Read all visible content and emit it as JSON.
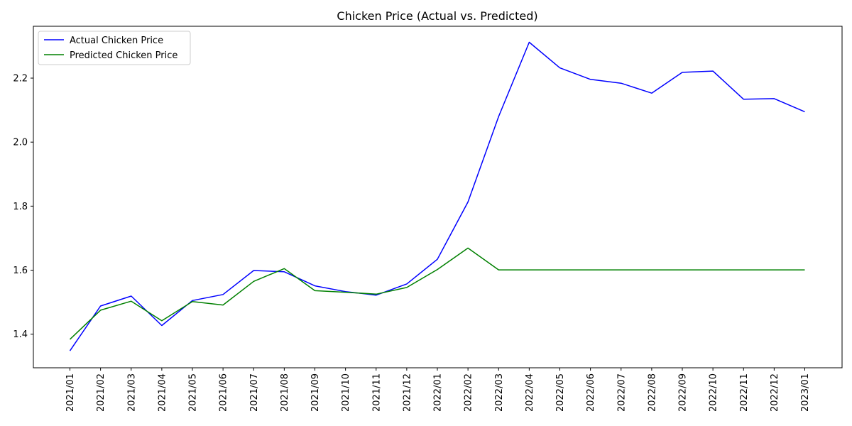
{
  "chart_data": {
    "type": "line",
    "title": "Chicken Price (Actual vs. Predicted)",
    "xlabel": "",
    "ylabel": "",
    "categories": [
      "2021/01",
      "2021/02",
      "2021/03",
      "2021/04",
      "2021/05",
      "2021/06",
      "2021/07",
      "2021/08",
      "2021/09",
      "2021/10",
      "2021/11",
      "2021/12",
      "2022/01",
      "2022/02",
      "2022/03",
      "2022/04",
      "2022/05",
      "2022/06",
      "2022/07",
      "2022/08",
      "2022/09",
      "2022/10",
      "2022/11",
      "2022/12",
      "2023/01"
    ],
    "yticks": [
      "1.4",
      "1.6",
      "1.8",
      "2.0",
      "2.2"
    ],
    "ylim": [
      1.295,
      2.362
    ],
    "grid": false,
    "legend_position": "top-left",
    "series": [
      {
        "name": "Actual Chicken Price",
        "color": "#0000ff",
        "values": [
          1.348,
          1.488,
          1.519,
          1.427,
          1.505,
          1.524,
          1.599,
          1.595,
          1.551,
          1.533,
          1.522,
          1.557,
          1.634,
          1.813,
          2.08,
          2.312,
          2.232,
          2.196,
          2.184,
          2.153,
          2.218,
          2.222,
          2.134,
          2.136,
          2.095
        ]
      },
      {
        "name": "Predicted Chicken Price",
        "color": "#008000",
        "values": [
          1.384,
          1.475,
          1.503,
          1.442,
          1.502,
          1.491,
          1.565,
          1.605,
          1.536,
          1.531,
          1.525,
          1.546,
          1.602,
          1.669,
          1.601,
          1.601,
          1.601,
          1.601,
          1.601,
          1.601,
          1.601,
          1.601,
          1.601,
          1.601,
          1.601
        ]
      }
    ]
  }
}
